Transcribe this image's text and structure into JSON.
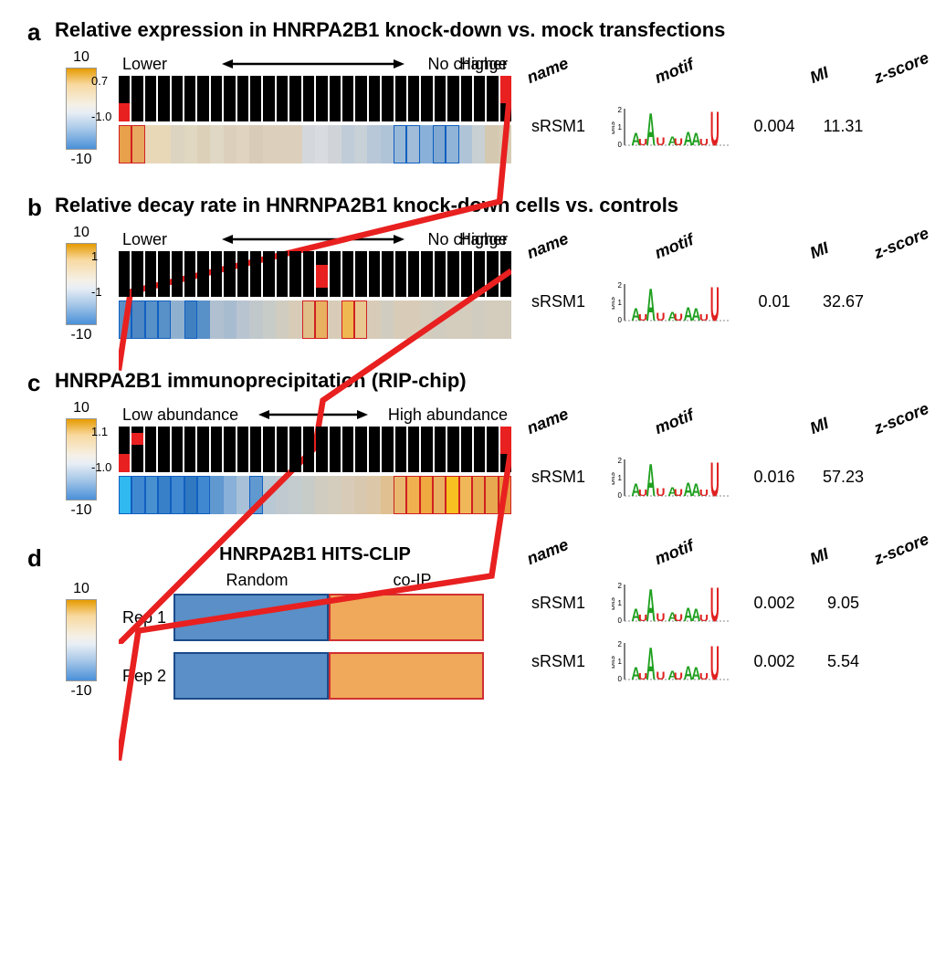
{
  "colorbar": {
    "max": "10",
    "min": "-10"
  },
  "panels": {
    "a": {
      "letter": "a",
      "title": "Relative expression in HNRPA2B1 knock-down vs. mock transfections",
      "arrow_left": "Lower",
      "arrow_mid": "No change",
      "arrow_right": "Higher",
      "ymax": "0.7",
      "ymin": "-1.0",
      "ncells": 30,
      "red_cells": {
        "0": "red-bot",
        "29": "red-top"
      },
      "red_line": [
        [
          0,
          0.75
        ],
        [
          0.03,
          0.55
        ],
        [
          0.97,
          0.32
        ],
        [
          1,
          0
        ]
      ],
      "heat_colors": [
        "#e8a04a",
        "#e8a860",
        "#e8d8b8",
        "#e8d8b8",
        "#dcd4c0",
        "#e0d8c0",
        "#dcd0b8",
        "#e0d8c4",
        "#dcd0bc",
        "#e0d4c0",
        "#d8ccb8",
        "#dcd0bc",
        "#dcd0bc",
        "#dcd0bc",
        "#d4d8dc",
        "#d8dce0",
        "#d0d4d8",
        "#c0ccd8",
        "#c8d0d8",
        "#b8c8d8",
        "#b0c4d8",
        "#98b8d8",
        "#a0bcd8",
        "#88b0d8",
        "#80a8d0",
        "#90b4d8",
        "#b0c4d8",
        "#c8d0d4",
        "#d4c8b0",
        "#d8ccb4"
      ],
      "outlines": {
        "0": "red",
        "1": "red",
        "21": "blue",
        "22": "blue",
        "24": "blue",
        "25": "blue"
      },
      "name": "sRSM1",
      "mi": "0.004",
      "z": "11.31"
    },
    "b": {
      "letter": "b",
      "title": "Relative decay rate in HNRNPA2B1 knock-down cells vs. controls",
      "arrow_left": "Lower",
      "arrow_mid": "No change",
      "arrow_right": "Higher",
      "ymax": "1",
      "ymin": "-1",
      "ncells": 30,
      "red_cells": {
        "15": "red-mid"
      },
      "red_line": [
        [
          0,
          1
        ],
        [
          0.5,
          0.5
        ],
        [
          0.52,
          0.38
        ],
        [
          1,
          0.05
        ]
      ],
      "heat_colors": [
        "#5a8fc7",
        "#5088c4",
        "#5890c8",
        "#5890c8",
        "#90b0d0",
        "#4080c0",
        "#5890c8",
        "#b0c0d0",
        "#a8bcd0",
        "#b8c4d0",
        "#c0c8cc",
        "#c8ccc8",
        "#d0ccc0",
        "#d8ccb8",
        "#e0c088",
        "#e8b060",
        "#d8ccb8",
        "#f0b850",
        "#e8c890",
        "#d8ccb8",
        "#d0ccc0",
        "#d8ccb8",
        "#d8ccb8",
        "#d4ccbc",
        "#d0ccc0",
        "#d4ccbc",
        "#d4ccbc",
        "#d0ccc0",
        "#d4ccbc",
        "#d4ccbc"
      ],
      "outlines": {
        "0": "blue",
        "1": "blue",
        "2": "blue",
        "3": "blue",
        "5": "blue",
        "14": "red",
        "15": "red",
        "17": "red",
        "18": "red"
      },
      "name": "sRSM1",
      "mi": "0.01",
      "z": "32.67"
    },
    "c": {
      "letter": "c",
      "title": "HNRPA2B1 immunoprecipitation (RIP-chip)",
      "arrow_left": "Low abundance",
      "arrow_mid": "",
      "arrow_right": "High abundance",
      "ymax": "1.1",
      "ymin": "-1.0",
      "ncells": 30,
      "red_cells": {
        "0": "red-bot",
        "1": "red-midsmall",
        "29": "red-top"
      },
      "red_line": [
        [
          0,
          0.85
        ],
        [
          0.05,
          0.52
        ],
        [
          0.95,
          0.38
        ],
        [
          1,
          0.05
        ]
      ],
      "heat_colors": [
        "#30b8f0",
        "#4088d0",
        "#4890d0",
        "#3880c8",
        "#4088d0",
        "#3078c0",
        "#4088d0",
        "#6098d0",
        "#88b0d8",
        "#a8c0d8",
        "#6098d0",
        "#b8c8d4",
        "#c0c8d0",
        "#c4ccd0",
        "#c8ccc8",
        "#d0ccc0",
        "#d4ccbc",
        "#d8ccb8",
        "#d8c8b0",
        "#dcc8a8",
        "#e0c090",
        "#e8b870",
        "#f0b050",
        "#f0a840",
        "#e8b060",
        "#f8c020",
        "#f0b858",
        "#e8a850",
        "#e8a850",
        "#e89840"
      ],
      "outlines": {
        "0": "blue",
        "1": "blue",
        "2": "blue",
        "3": "blue",
        "4": "blue",
        "5": "blue",
        "6": "blue",
        "10": "blue",
        "21": "red",
        "22": "red",
        "23": "red",
        "24": "red",
        "25": "red",
        "26": "red",
        "27": "red",
        "28": "red",
        "29": "red"
      },
      "name": "sRSM1",
      "mi": "0.016",
      "z": "57.23"
    },
    "d": {
      "letter": "d",
      "title": "HNRPA2B1 HITS-CLIP",
      "col_random": "Random",
      "col_coip": "co-IP",
      "rows": [
        {
          "label": "Rep 1",
          "name": "sRSM1",
          "mi": "0.002",
          "z": "9.05"
        },
        {
          "label": "Rep 2",
          "name": "sRSM1",
          "mi": "0.002",
          "z": "5.54"
        }
      ]
    }
  },
  "headers": {
    "name": "name",
    "motif": "motif",
    "mi": "MI",
    "z": "z-score"
  },
  "motif": {
    "ylabel": "bits",
    "ymax": "2",
    "ymid": "1",
    "ymin": "0",
    "letters": [
      {
        "ch": "A",
        "x": 0.05,
        "h": 0.35,
        "c": "#20a020"
      },
      {
        "ch": "U",
        "x": 0.12,
        "h": 0.18,
        "c": "#e02020"
      },
      {
        "ch": "A",
        "x": 0.2,
        "h": 0.9,
        "c": "#20a020"
      },
      {
        "ch": "U",
        "x": 0.3,
        "h": 0.22,
        "c": "#e02020"
      },
      {
        "ch": "A",
        "x": 0.42,
        "h": 0.25,
        "c": "#20a020"
      },
      {
        "ch": "U",
        "x": 0.48,
        "h": 0.2,
        "c": "#e02020"
      },
      {
        "ch": "A",
        "x": 0.58,
        "h": 0.38,
        "c": "#20a020"
      },
      {
        "ch": "A",
        "x": 0.66,
        "h": 0.35,
        "c": "#20a020"
      },
      {
        "ch": "U",
        "x": 0.74,
        "h": 0.18,
        "c": "#e02020"
      },
      {
        "ch": "U",
        "x": 0.85,
        "h": 0.95,
        "c": "#e02020"
      }
    ]
  }
}
